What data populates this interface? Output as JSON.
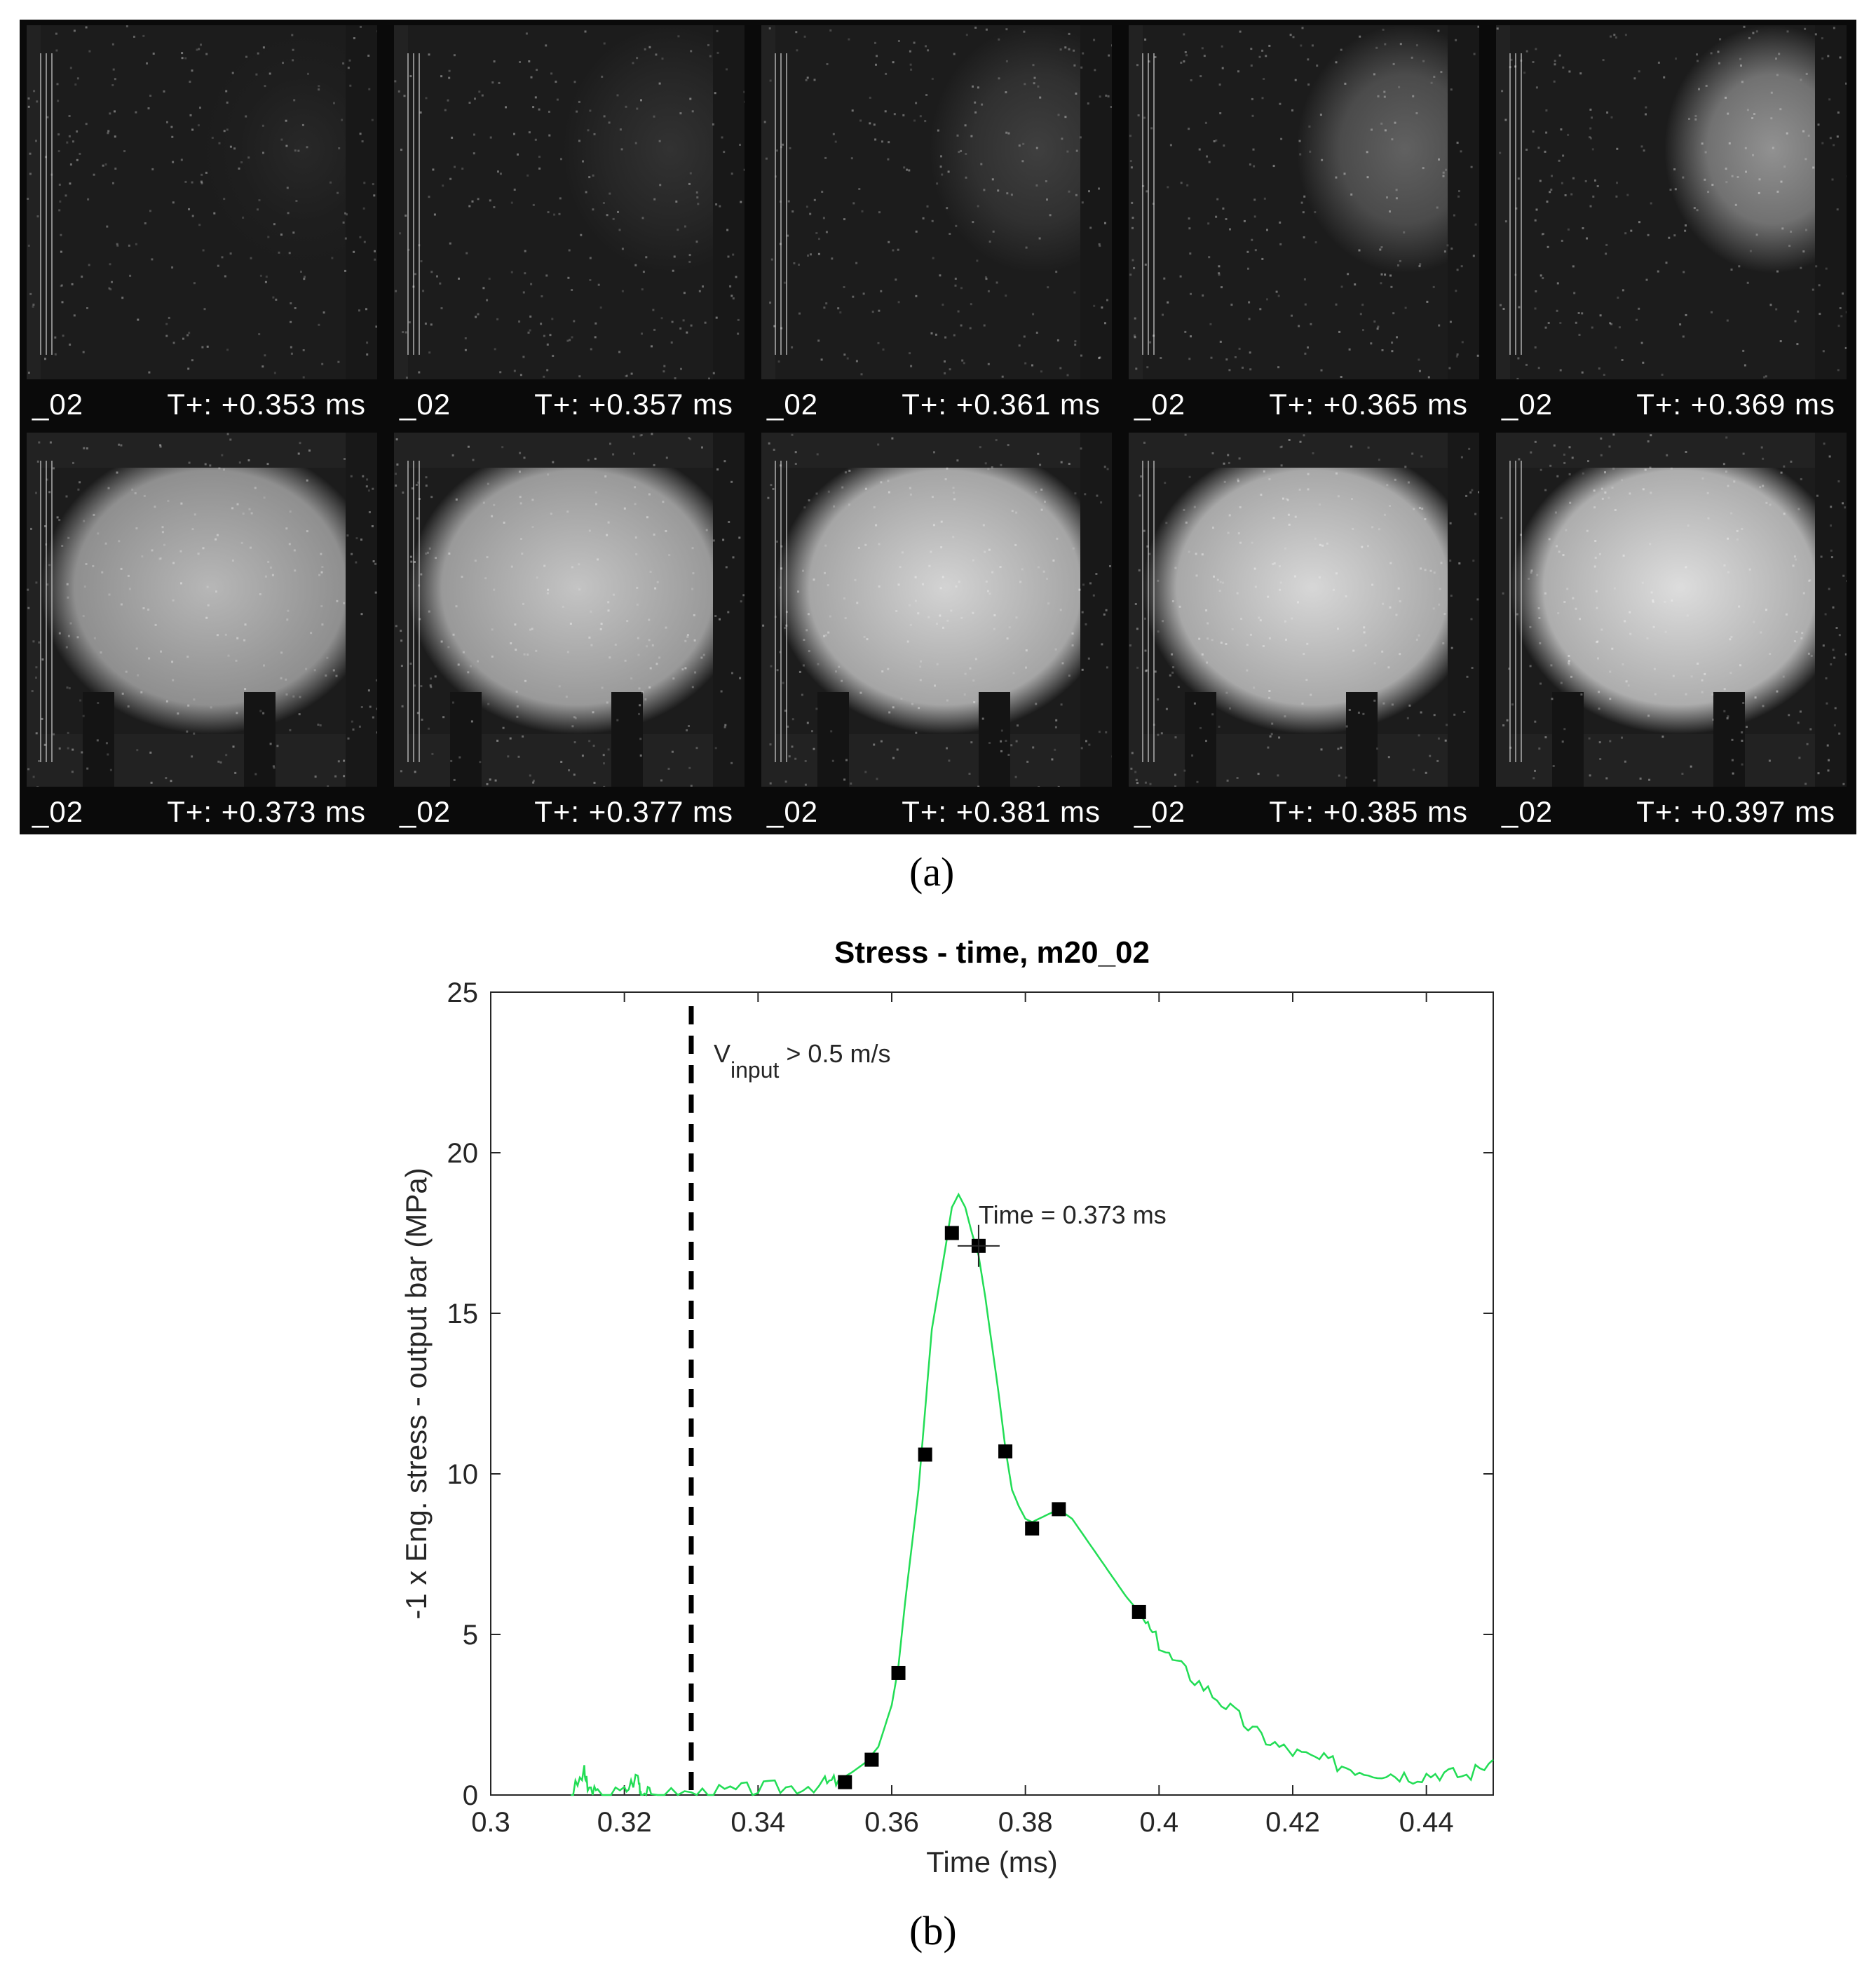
{
  "panel_a": {
    "caption": "(a)",
    "frames": [
      {
        "id": "_02",
        "time": "T+: +0.353 ms",
        "brightness": 0.0
      },
      {
        "id": "_02",
        "time": "T+: +0.357 ms",
        "brightness": 0.05
      },
      {
        "id": "_02",
        "time": "T+: +0.361 ms",
        "brightness": 0.12
      },
      {
        "id": "_02",
        "time": "T+: +0.365 ms",
        "brightness": 0.3
      },
      {
        "id": "_02",
        "time": "T+: +0.369 ms",
        "brightness": 0.55
      },
      {
        "id": "_02",
        "time": "T+: +0.373 ms",
        "brightness": 0.75
      },
      {
        "id": "_02",
        "time": "T+: +0.377 ms",
        "brightness": 0.82
      },
      {
        "id": "_02",
        "time": "T+: +0.381 ms",
        "brightness": 0.9
      },
      {
        "id": "_02",
        "time": "T+: +0.385 ms",
        "brightness": 0.92
      },
      {
        "id": "_02",
        "time": "T+: +0.397 ms",
        "brightness": 0.95
      }
    ]
  },
  "panel_b": {
    "caption": "(b)"
  },
  "chart_data": {
    "type": "line",
    "title": "Stress - time, m20_02",
    "xlabel": "Time (ms)",
    "ylabel": "-1 x Eng. stress - output bar (MPa)",
    "xlim": [
      0.3,
      0.45
    ],
    "ylim": [
      0,
      25
    ],
    "xticks": [
      "0.3",
      "0.32",
      "0.34",
      "0.36",
      "0.38",
      "0.4",
      "0.42",
      "0.44"
    ],
    "yticks": [
      "0",
      "5",
      "10",
      "15",
      "20",
      "25"
    ],
    "grid": false,
    "line_color": "#22dd55",
    "series": [
      {
        "style": "line",
        "x": [
          0.312,
          0.314,
          0.3145,
          0.316,
          0.32,
          0.322,
          0.3225,
          0.324,
          0.33,
          0.335,
          0.34,
          0.345,
          0.35,
          0.352,
          0.354,
          0.356,
          0.358,
          0.36,
          0.361,
          0.362,
          0.364,
          0.365,
          0.366,
          0.368,
          0.369,
          0.37,
          0.371,
          0.372,
          0.373,
          0.374,
          0.376,
          0.377,
          0.378,
          0.379,
          0.38,
          0.381,
          0.383,
          0.385,
          0.387,
          0.389,
          0.391,
          0.393,
          0.395,
          0.397,
          0.399,
          0.402,
          0.406,
          0.41,
          0.414,
          0.418,
          0.422,
          0.426,
          0.43,
          0.434,
          0.438,
          0.442,
          0.446,
          0.45
        ],
        "y": [
          0.0,
          0.7,
          0.2,
          0.0,
          0.1,
          0.6,
          0.1,
          0.0,
          0.05,
          0.1,
          0.2,
          0.25,
          0.35,
          0.45,
          0.7,
          1.0,
          1.5,
          2.8,
          4.0,
          6.0,
          9.5,
          12.0,
          14.5,
          17.0,
          18.3,
          18.7,
          18.3,
          17.5,
          16.8,
          15.5,
          12.5,
          10.8,
          9.5,
          9.0,
          8.6,
          8.5,
          8.7,
          8.9,
          8.6,
          8.0,
          7.4,
          6.8,
          6.2,
          5.7,
          5.0,
          4.2,
          3.5,
          2.8,
          2.0,
          1.5,
          1.2,
          1.0,
          0.8,
          0.7,
          0.6,
          0.7,
          0.6,
          1.1
        ]
      },
      {
        "style": "markers",
        "x": [
          0.353,
          0.357,
          0.361,
          0.365,
          0.369,
          0.373,
          0.377,
          0.381,
          0.385,
          0.397
        ],
        "y": [
          0.4,
          1.1,
          3.8,
          10.6,
          17.5,
          17.1,
          10.7,
          8.3,
          8.9,
          5.7
        ]
      }
    ],
    "vline": {
      "x": 0.33,
      "label": "V",
      "label_sub": "input",
      "label_rest": " > 0.5 m/s"
    },
    "annotation": {
      "x": 0.373,
      "y": 17.1,
      "text": "Time = 0.373 ms"
    }
  }
}
